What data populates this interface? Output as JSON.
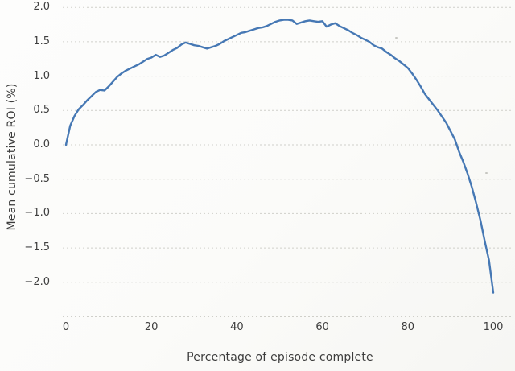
{
  "chart_data": {
    "type": "line",
    "title": "",
    "xlabel": "Percentage of episode complete",
    "ylabel": "Mean cumulative ROI (%)",
    "xlim": [
      -1,
      105
    ],
    "ylim": [
      -2.5,
      2.1
    ],
    "grid": "horizontal-dotted",
    "legend": "none",
    "grid_values": [
      2.0,
      1.5,
      1.0,
      0.5,
      0.0,
      -0.5,
      -1.0,
      -1.5,
      -2.0,
      -2.5
    ],
    "y_ticks": [
      {
        "label": "2.0",
        "value": 2.0
      },
      {
        "label": "1.5",
        "value": 1.5
      },
      {
        "label": "1.0",
        "value": 1.0
      },
      {
        "label": "0.5",
        "value": 0.5
      },
      {
        "label": "0.0",
        "value": 0.0
      },
      {
        "label": "−0.5",
        "value": -0.5
      },
      {
        "label": "−1.0",
        "value": -1.0
      },
      {
        "label": "−1.5",
        "value": -1.5
      },
      {
        "label": "−2.0",
        "value": -2.0
      }
    ],
    "x_ticks": [
      {
        "label": "0",
        "value": 0
      },
      {
        "label": "20",
        "value": 20
      },
      {
        "label": "40",
        "value": 40
      },
      {
        "label": "60",
        "value": 60
      },
      {
        "label": "80",
        "value": 80
      },
      {
        "label": "100",
        "value": 100
      }
    ],
    "series": [
      {
        "name": "mean-cumulative-roi",
        "color": "#4678b4",
        "x": [
          0,
          1,
          2,
          3,
          4,
          5,
          6,
          7,
          8,
          9,
          10,
          11,
          12,
          13,
          14,
          15,
          16,
          17,
          18,
          19,
          20,
          21,
          22,
          23,
          24,
          25,
          26,
          27,
          28,
          29,
          30,
          31,
          32,
          33,
          34,
          35,
          36,
          37,
          38,
          39,
          40,
          41,
          42,
          43,
          44,
          45,
          46,
          47,
          48,
          49,
          50,
          51,
          52,
          53,
          54,
          55,
          56,
          57,
          58,
          59,
          60,
          61,
          62,
          63,
          64,
          65,
          66,
          67,
          68,
          69,
          70,
          71,
          72,
          73,
          74,
          75,
          76,
          77,
          78,
          79,
          80,
          81,
          82,
          83,
          84,
          85,
          86,
          87,
          88,
          89,
          90,
          91,
          92,
          93,
          94,
          95,
          96,
          97,
          98,
          99,
          100
        ],
        "values": [
          0.0,
          0.28,
          0.42,
          0.52,
          0.58,
          0.65,
          0.71,
          0.77,
          0.8,
          0.79,
          0.85,
          0.92,
          0.99,
          1.04,
          1.08,
          1.11,
          1.14,
          1.17,
          1.21,
          1.25,
          1.27,
          1.31,
          1.28,
          1.3,
          1.34,
          1.38,
          1.41,
          1.46,
          1.49,
          1.47,
          1.45,
          1.44,
          1.42,
          1.4,
          1.42,
          1.44,
          1.47,
          1.51,
          1.54,
          1.57,
          1.6,
          1.63,
          1.64,
          1.66,
          1.68,
          1.7,
          1.71,
          1.73,
          1.76,
          1.79,
          1.81,
          1.82,
          1.82,
          1.81,
          1.76,
          1.78,
          1.8,
          1.81,
          1.8,
          1.79,
          1.8,
          1.72,
          1.75,
          1.77,
          1.73,
          1.7,
          1.67,
          1.63,
          1.6,
          1.56,
          1.53,
          1.5,
          1.45,
          1.42,
          1.4,
          1.35,
          1.31,
          1.26,
          1.22,
          1.17,
          1.12,
          1.04,
          0.95,
          0.85,
          0.74,
          0.66,
          0.58,
          0.5,
          0.41,
          0.32,
          0.2,
          0.08,
          -0.1,
          -0.25,
          -0.42,
          -0.62,
          -0.85,
          -1.1,
          -1.4,
          -1.68,
          -2.15
        ]
      }
    ]
  },
  "colors": {
    "line": "#4678b4",
    "gridline": "#cbcbc5",
    "text": "#3c3c3c",
    "background": "#fbfbf9"
  }
}
